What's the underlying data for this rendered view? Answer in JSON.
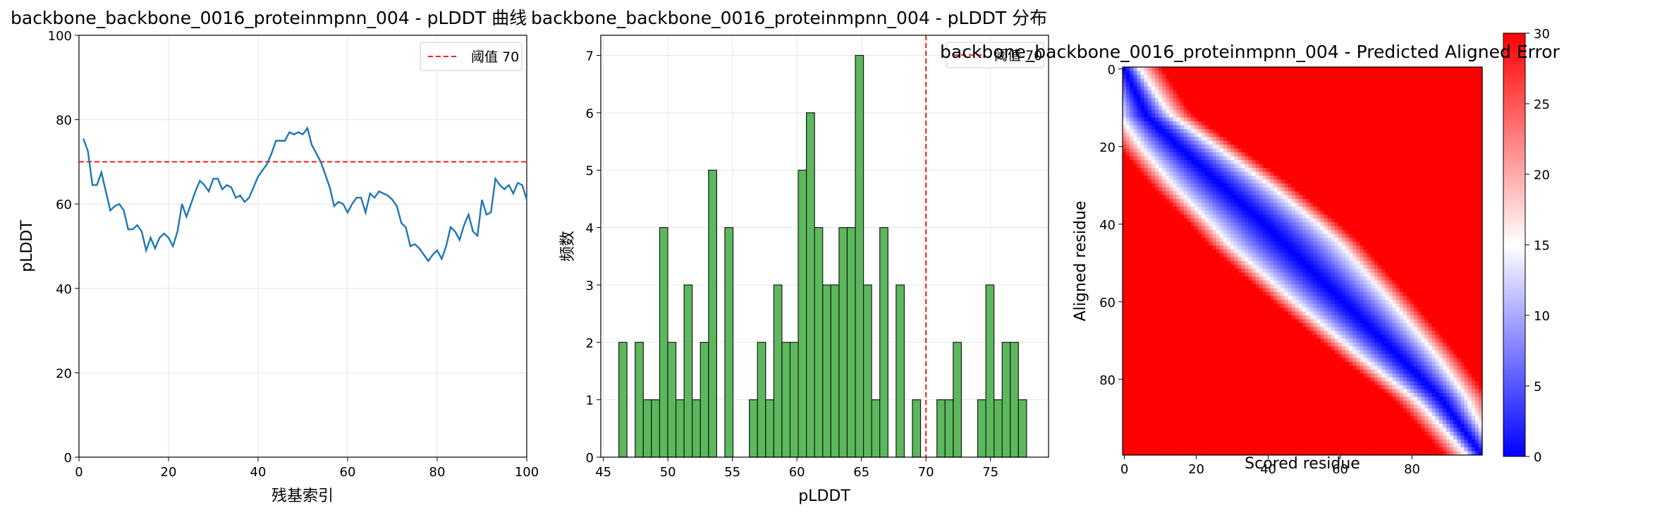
{
  "chart_data": [
    {
      "type": "line",
      "title": "backbone_backbone_0016_proteinmpnn_004 - pLDDT 曲线",
      "xlabel": "残基索引",
      "ylabel": "pLDDT",
      "xlim": [
        0,
        100
      ],
      "ylim": [
        0,
        100
      ],
      "xticks": [
        0,
        20,
        40,
        60,
        80,
        100
      ],
      "yticks": [
        0,
        20,
        40,
        60,
        80,
        100
      ],
      "grid": true,
      "legend_position": "top-right",
      "threshold": {
        "value": 70,
        "label": "阈值 70",
        "color": "#ff0000",
        "style": "dashed"
      },
      "series": [
        {
          "color": "#1f77b4",
          "x": [
            1,
            2,
            3,
            4,
            5,
            6,
            7,
            8,
            9,
            10,
            11,
            12,
            13,
            14,
            15,
            16,
            17,
            18,
            19,
            20,
            21,
            22,
            23,
            24,
            25,
            26,
            27,
            28,
            29,
            30,
            31,
            32,
            33,
            34,
            35,
            36,
            37,
            38,
            39,
            40,
            41,
            42,
            43,
            44,
            45,
            46,
            47,
            48,
            49,
            50,
            51,
            52,
            53,
            54,
            55,
            56,
            57,
            58,
            59,
            60,
            61,
            62,
            63,
            64,
            65,
            66,
            67,
            68,
            69,
            70,
            71,
            72,
            73,
            74,
            75,
            76,
            77,
            78,
            79,
            80,
            81,
            82,
            83,
            84,
            85,
            86,
            87,
            88,
            89,
            90,
            91,
            92,
            93,
            94,
            95,
            96,
            97,
            98,
            99,
            100
          ],
          "values": [
            75.5,
            72.5,
            64.5,
            64.5,
            67.5,
            63,
            58.5,
            59.5,
            60,
            58.5,
            54,
            54,
            55,
            53.5,
            49,
            52,
            49.5,
            52,
            53,
            52,
            50,
            53.5,
            60,
            57,
            60,
            63,
            65.5,
            64.5,
            63,
            66,
            66,
            63.5,
            64.5,
            64,
            61.5,
            62,
            60.5,
            61.5,
            64,
            66.5,
            68,
            69.5,
            72,
            75,
            75,
            75,
            77,
            76.5,
            77,
            76.5,
            78,
            74,
            72,
            70,
            67,
            64,
            59.5,
            60.5,
            60,
            58,
            60,
            61.5,
            61.5,
            58,
            62.5,
            61.5,
            63,
            62.5,
            62,
            61,
            59.5,
            55.5,
            54.5,
            50,
            50.5,
            49.5,
            48,
            46.5,
            48,
            49,
            47,
            50,
            54.5,
            53.5,
            51.5,
            55,
            57.5,
            53.5,
            52.5,
            61,
            57.5,
            58,
            66,
            64.5,
            63.5,
            64.5,
            62.5,
            65,
            64.5,
            61
          ]
        }
      ]
    },
    {
      "type": "bar",
      "title": "backbone_backbone_0016_proteinmpnn_004 - pLDDT 分布",
      "xlabel": "pLDDT",
      "ylabel": "频数",
      "xlim": [
        44.8,
        79.5
      ],
      "ylim": [
        0,
        7.35
      ],
      "xticks": [
        45,
        50,
        55,
        60,
        65,
        70,
        75
      ],
      "yticks": [
        0,
        1,
        2,
        3,
        4,
        5,
        6,
        7
      ],
      "grid": true,
      "legend_position": "top-right",
      "bar_color": "#5cb85c",
      "threshold": {
        "value": 70,
        "label": "阈值 70",
        "color": "#ff0000",
        "style": "dashed"
      },
      "bins": {
        "start": 46.2,
        "width": 0.632
      },
      "values": [
        2,
        0,
        2,
        1,
        1,
        4,
        2,
        1,
        3,
        1,
        2,
        5,
        0,
        4,
        0,
        0,
        1,
        2,
        1,
        3,
        2,
        2,
        5,
        6,
        4,
        3,
        3,
        4,
        4,
        7,
        3,
        1,
        4,
        0,
        3,
        0,
        1,
        0,
        0,
        1,
        1,
        2,
        0,
        0,
        1,
        3,
        1,
        2,
        2,
        1
      ]
    },
    {
      "type": "heatmap",
      "title": "backbone_backbone_0016_proteinmpnn_004 - Predicted Aligned Error",
      "xlabel": "Scored residue",
      "ylabel": "Aligned residue",
      "size": 100,
      "xticks": [
        0,
        20,
        40,
        60,
        80
      ],
      "yticks": [
        0,
        20,
        40,
        60,
        80
      ],
      "colorbar": {
        "min": 0,
        "max": 30,
        "ticks": [
          0,
          5,
          10,
          15,
          20,
          25,
          30
        ],
        "colormap": "bwr"
      },
      "band_center": [
        [
          0,
          0
        ],
        [
          12,
          6
        ],
        [
          20,
          15
        ],
        [
          30,
          27
        ],
        [
          40,
          39
        ],
        [
          52,
          52
        ],
        [
          62,
          63
        ],
        [
          72,
          74
        ],
        [
          85,
          88
        ],
        [
          99,
          99
        ]
      ],
      "band_halfwidth": [
        [
          0,
          4
        ],
        [
          10,
          6
        ],
        [
          20,
          10
        ],
        [
          30,
          13
        ],
        [
          45,
          15
        ],
        [
          60,
          13
        ],
        [
          75,
          10
        ],
        [
          88,
          6
        ],
        [
          99,
          4
        ]
      ],
      "error_floor": 0,
      "error_ceiling": 30
    }
  ]
}
